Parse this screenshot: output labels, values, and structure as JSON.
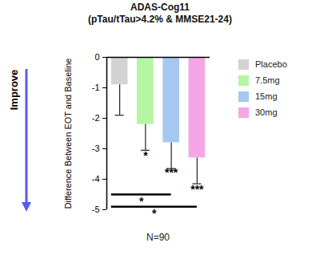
{
  "chart_data": {
    "type": "bar",
    "title": "ADAS-Cog11",
    "subtitle": "(pTau/tTau>4.2% & MMSE21-24)",
    "y_label": "Difference Between EOT and Baseline",
    "x_label": "N=90",
    "arrow_label": "Improve",
    "categories": [
      "Placebo",
      "7.5mg",
      "15mg",
      "30mg"
    ],
    "values": [
      -0.9,
      -2.2,
      -2.8,
      -3.3
    ],
    "errors": [
      1.0,
      0.85,
      0.85,
      0.85
    ],
    "colors": [
      "#d3d3d3",
      "#b6f5a3",
      "#a6c8f0",
      "#f5a6e6"
    ],
    "ylim": [
      -5,
      0
    ],
    "yticks": [
      -5,
      -4,
      -3,
      -2,
      -1,
      0
    ],
    "legend": "right",
    "tick_labels": "y",
    "annotations": [
      {
        "text": "*",
        "category": "7.5mg",
        "y": -3.25
      },
      {
        "text": "***",
        "category": "15mg",
        "y": -3.8
      },
      {
        "text": "***",
        "category": "30mg",
        "y": -4.35
      }
    ],
    "comparisons": [
      {
        "from": "Placebo",
        "to": "15mg",
        "y": -4.5,
        "text": "*"
      },
      {
        "from": "Placebo",
        "to": "30mg",
        "y": -4.9,
        "text": "*"
      }
    ]
  }
}
